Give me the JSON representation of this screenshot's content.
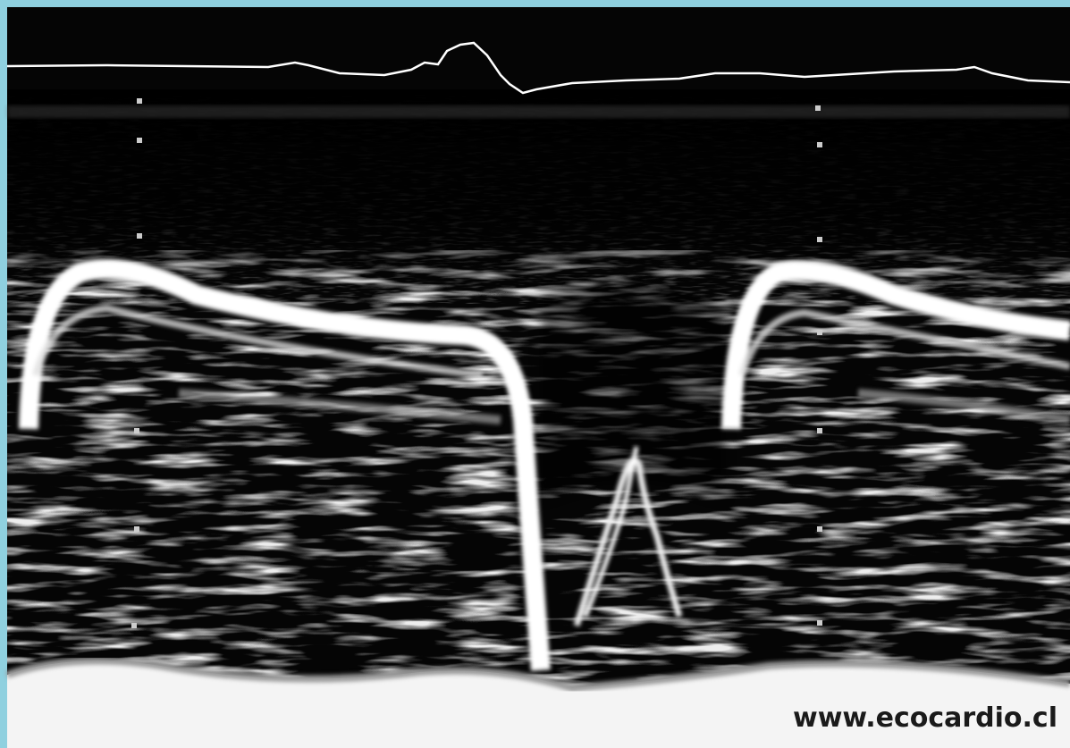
{
  "watermark": "www.ecocardio.cl"
}
